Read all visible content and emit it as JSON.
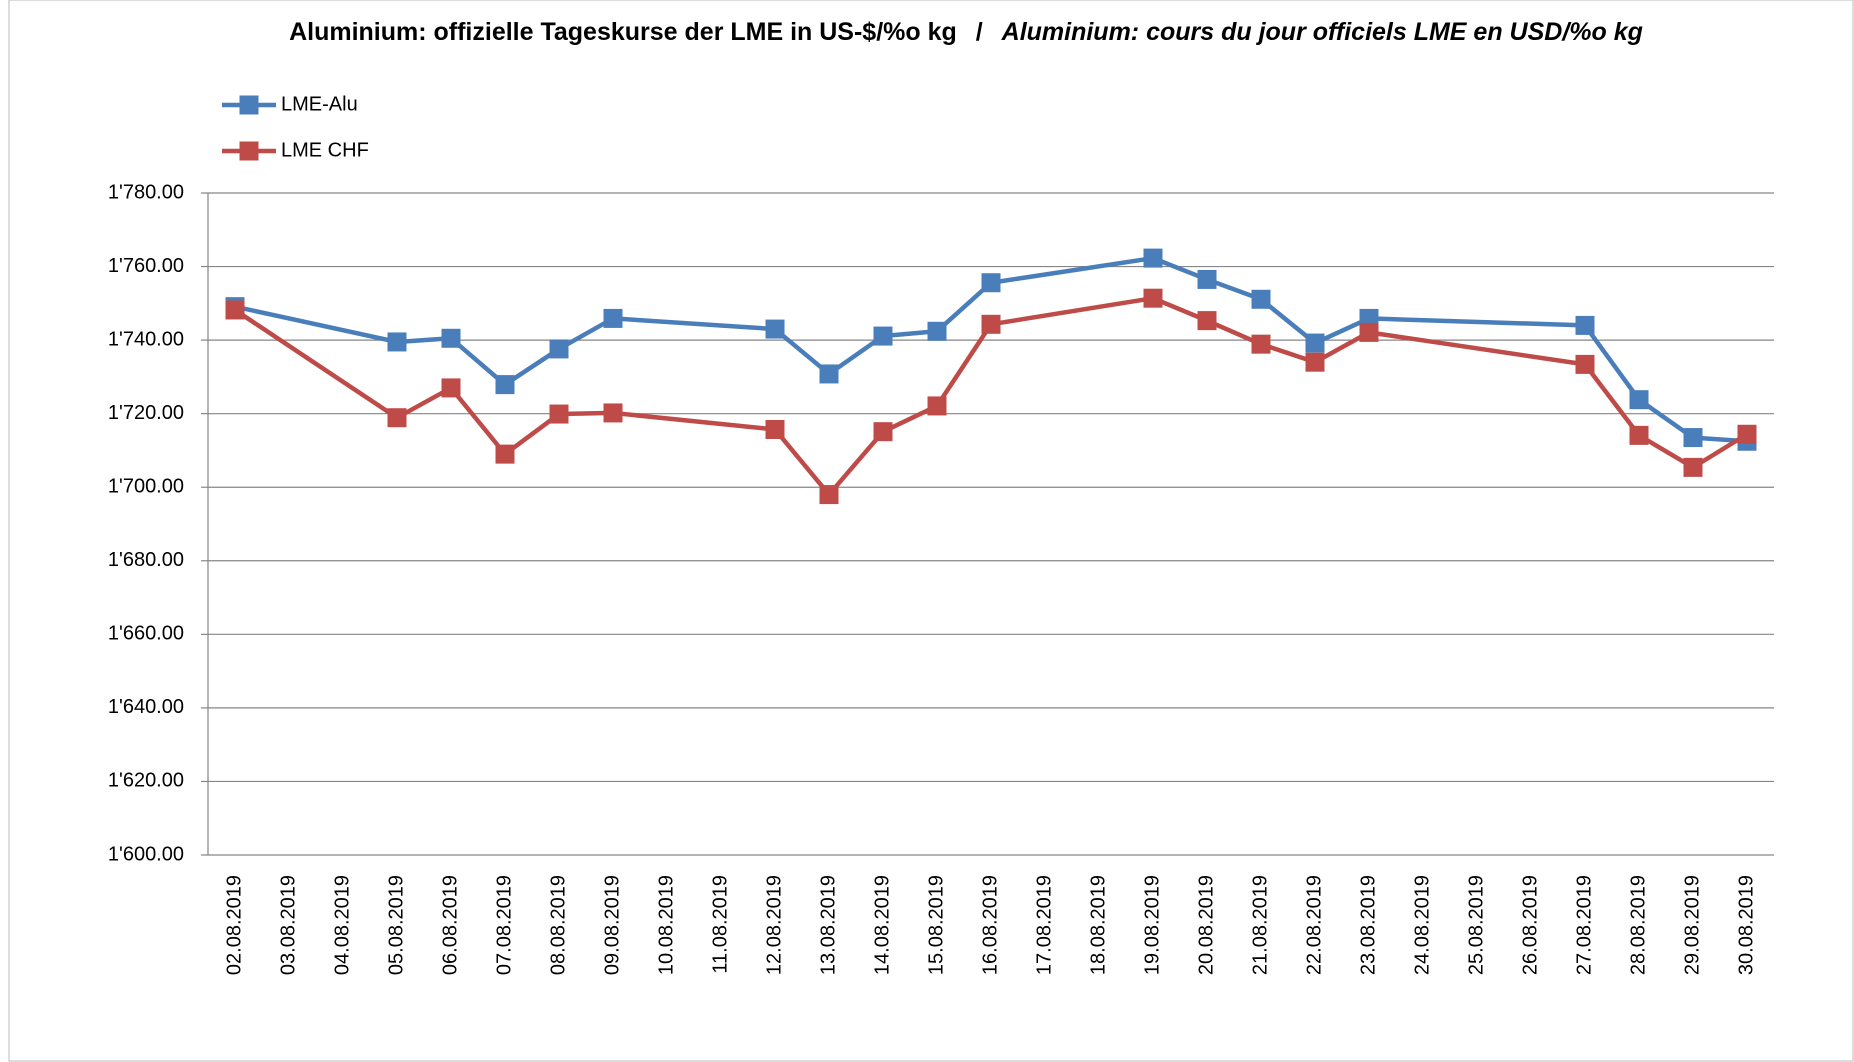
{
  "chart_data": {
    "type": "line",
    "title": [
      "Aluminium:    offizielle Tageskurse der LME in US-$/%o kg",
      "/",
      "Aluminium:    cours du jour officiels LME en USD/%o kg"
    ],
    "categories": [
      "02.08.2019",
      "03.08.2019",
      "04.08.2019",
      "05.08.2019",
      "06.08.2019",
      "07.08.2019",
      "08.08.2019",
      "09.08.2019",
      "10.08.2019",
      "11.08.2019",
      "12.08.2019",
      "13.08.2019",
      "14.08.2019",
      "15.08.2019",
      "16.08.2019",
      "17.08.2019",
      "18.08.2019",
      "19.08.2019",
      "20.08.2019",
      "21.08.2019",
      "22.08.2019",
      "23.08.2019",
      "24.08.2019",
      "25.08.2019",
      "26.08.2019",
      "27.08.2019",
      "28.08.2019",
      "29.08.2019",
      "30.08.2019"
    ],
    "series": [
      {
        "name": "LME-Alu",
        "color": "#4a7ebb",
        "values": [
          1749.1,
          null,
          null,
          1739.5,
          1740.5,
          1727.9,
          1737.6,
          1745.9,
          null,
          null,
          1743,
          1730.8,
          1741.1,
          1742.4,
          1755.6,
          null,
          null,
          1762.3,
          1756.5,
          1751.1,
          1739.2,
          1745.9,
          null,
          null,
          null,
          1744,
          1723.8,
          1713.5,
          1712.5
        ]
      },
      {
        "name": "LME CHF",
        "color": "#be4b48",
        "values": [
          1748.2,
          null,
          null,
          1718.9,
          1727,
          1709,
          1719.9,
          1720.2,
          null,
          null,
          1715.7,
          1698,
          1715.1,
          1722.1,
          1744.3,
          null,
          null,
          1751.4,
          1745.3,
          1738.9,
          1734,
          1742.1,
          null,
          null,
          null,
          1733.4,
          1714.1,
          1705.4,
          1714.4
        ]
      }
    ],
    "ylim": [
      1600,
      1780
    ],
    "yticks": [
      {
        "value": 1600,
        "label": "1'600.00"
      },
      {
        "value": 1620,
        "label": "1'620.00"
      },
      {
        "value": 1640,
        "label": "1'640.00"
      },
      {
        "value": 1660,
        "label": "1'660.00"
      },
      {
        "value": 1680,
        "label": "1'680.00"
      },
      {
        "value": 1700,
        "label": "1'700.00"
      },
      {
        "value": 1720,
        "label": "1'720.00"
      },
      {
        "value": 1740,
        "label": "1'740.00"
      },
      {
        "value": 1760,
        "label": "1'760.00"
      },
      {
        "value": 1780,
        "label": "1'780.00"
      }
    ],
    "grid": true,
    "legend": "top-left"
  }
}
